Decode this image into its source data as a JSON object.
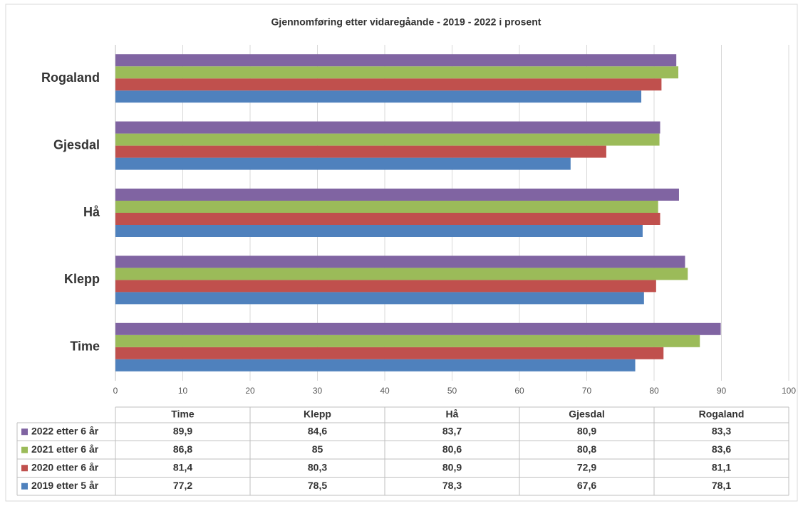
{
  "chart_data": {
    "type": "bar",
    "orientation": "horizontal",
    "title": "Gjennomføring etter vidaregåande - 2019 - 2022 i prosent",
    "categories": [
      "Time",
      "Klepp",
      "Hå",
      "Gjesdal",
      "Rogaland"
    ],
    "series": [
      {
        "name": "2019 etter 5 år",
        "color": "#4f81bd",
        "values": [
          77.2,
          78.5,
          78.3,
          67.6,
          78.1
        ],
        "value_labels": [
          "77,2",
          "78,5",
          "78,3",
          "67,6",
          "78,1"
        ]
      },
      {
        "name": "2020 etter 6 år",
        "color": "#c0504d",
        "values": [
          81.4,
          80.3,
          80.9,
          72.9,
          81.1
        ],
        "value_labels": [
          "81,4",
          "80,3",
          "80,9",
          "72,9",
          "81,1"
        ]
      },
      {
        "name": "2021 etter 6 år",
        "color": "#9bbb59",
        "values": [
          86.8,
          85,
          80.6,
          80.8,
          83.6
        ],
        "value_labels": [
          "86,8",
          "85",
          "80,6",
          "80,8",
          "83,6"
        ]
      },
      {
        "name": "2022 etter 6 år",
        "color": "#8064a2",
        "values": [
          89.9,
          84.6,
          83.7,
          80.9,
          83.3
        ],
        "value_labels": [
          "89,9",
          "84,6",
          "83,7",
          "80,9",
          "83,3"
        ]
      }
    ],
    "xlim": [
      0,
      100
    ],
    "xticks": [
      0,
      10,
      20,
      30,
      40,
      50,
      60,
      70,
      80,
      90,
      100
    ],
    "grid": true
  }
}
